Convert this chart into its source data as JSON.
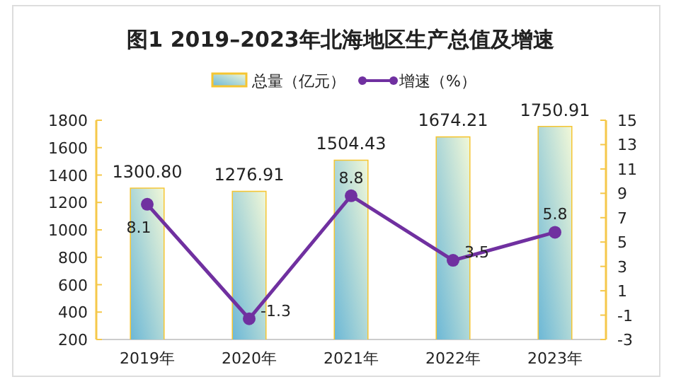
{
  "chart_data": {
    "type": "bar",
    "title": "图1  2019–2023年北海地区生产总值及增速",
    "categories": [
      "2019年",
      "2020年",
      "2021年",
      "2022年",
      "2023年"
    ],
    "series": [
      {
        "name": "总量（亿元）",
        "color": "#6db8d6",
        "values": [
          1300.8,
          1276.91,
          1504.43,
          1674.21,
          1750.91
        ],
        "value_labels": [
          "1300.80",
          "1276.91",
          "1504.43",
          "1674.21",
          "1750.91"
        ]
      },
      {
        "name": "增速（%）",
        "type": "line",
        "axis": "y2",
        "color": "#7030a0",
        "values": [
          8.1,
          -1.3,
          8.8,
          3.5,
          5.8
        ]
      }
    ],
    "ylim": [
      200,
      1800
    ],
    "yticks": [
      200,
      400,
      600,
      800,
      1000,
      1200,
      1400,
      1600,
      1800
    ],
    "y2lim": [
      -3,
      15
    ],
    "y2ticks": [
      -3,
      -1,
      1,
      3,
      5,
      7,
      9,
      11,
      13,
      15
    ],
    "data_labels": true,
    "legend": "top",
    "marker": "circle",
    "grid": false
  }
}
